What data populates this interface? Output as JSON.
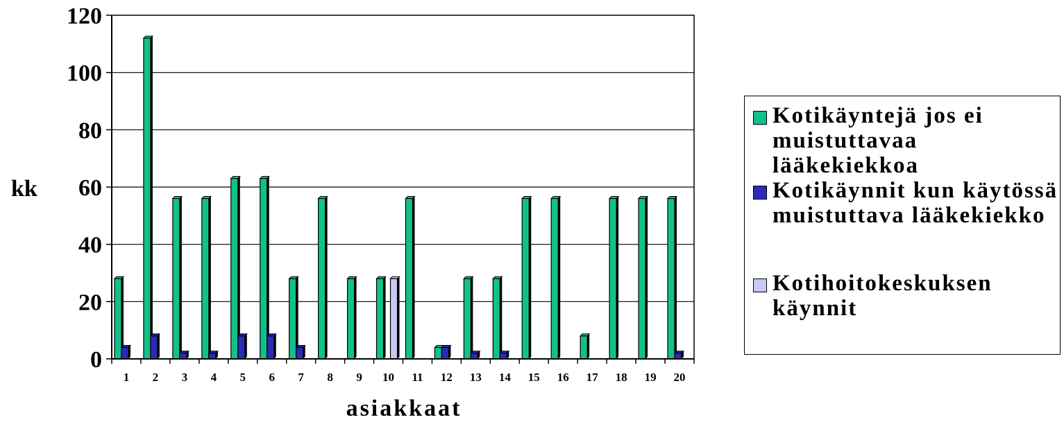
{
  "chart_data": {
    "type": "bar",
    "categories": [
      "1",
      "2",
      "3",
      "4",
      "5",
      "6",
      "7",
      "8",
      "9",
      "10",
      "11",
      "12",
      "13",
      "14",
      "15",
      "16",
      "17",
      "18",
      "19",
      "20"
    ],
    "series": [
      {
        "name": "Kotikäyntejä jos ei muistuttavaa lääkekiekkoa",
        "color": "#12c08a",
        "values": [
          28,
          112,
          56,
          56,
          63,
          63,
          28,
          56,
          28,
          28,
          56,
          4,
          28,
          28,
          56,
          56,
          8,
          56,
          56,
          56
        ]
      },
      {
        "name": "Kotikäynnit kun käytössä muistuttava lääkekiekko",
        "color": "#2b2bb8",
        "values": [
          4,
          8,
          2,
          2,
          8,
          8,
          4,
          0,
          0,
          0,
          0,
          4,
          2,
          2,
          0,
          0,
          0,
          0,
          0,
          2
        ]
      },
      {
        "name": "Kotihoitokeskuksen käynnit",
        "color": "#c8c8f4",
        "values": [
          0,
          0,
          0,
          0,
          0,
          0,
          0,
          0,
          0,
          28,
          0,
          0,
          0,
          0,
          0,
          0,
          0,
          0,
          0,
          0
        ]
      }
    ],
    "xlabel": "asiakkaat",
    "ylabel": "kk",
    "ylim": [
      0,
      120
    ],
    "yticks": [
      "0",
      "20",
      "40",
      "60",
      "80",
      "100",
      "120"
    ],
    "grid": true,
    "legend": "right"
  }
}
